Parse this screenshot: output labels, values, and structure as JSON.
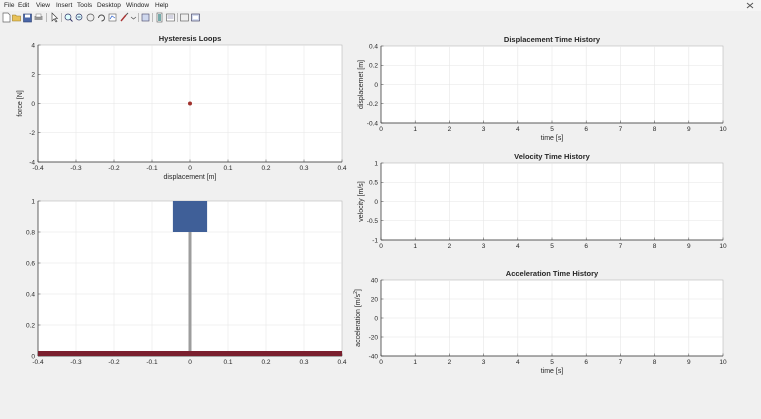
{
  "menu": [
    "File",
    "Edit",
    "View",
    "Insert",
    "Tools",
    "Desktop",
    "Window",
    "Help"
  ],
  "toolbar": {
    "icons": [
      "new-file-icon",
      "open-folder-icon",
      "save-icon",
      "print-icon",
      "pointer-icon",
      "zoom-in-icon",
      "zoom-out-icon",
      "pan-icon",
      "rotate-icon",
      "data-cursor-icon",
      "brush-icon",
      "link-icon",
      "colorbar-icon",
      "legend-icon",
      "hide-plot-tools-icon",
      "show-plot-tools-icon"
    ]
  },
  "hysteresis": {
    "title": "Hysteresis Loops",
    "xlabel": "displacement [m]",
    "ylabel": "force [N]",
    "xticks": [
      "-0.4",
      "-0.3",
      "-0.2",
      "-0.1",
      "0",
      "0.1",
      "0.2",
      "0.3",
      "0.4"
    ],
    "yticks": [
      "-4",
      "-2",
      "0",
      "2",
      "4"
    ]
  },
  "animation": {
    "xticks": [
      "-0.4",
      "-0.3",
      "-0.2",
      "-0.1",
      "0",
      "0.1",
      "0.2",
      "0.3",
      "0.4"
    ],
    "yticks": [
      "0",
      "0.2",
      "0.4",
      "0.6",
      "0.8",
      "1"
    ],
    "mass_color": "#3f5f98",
    "ground_color": "#7a1f2e",
    "rod_color": "#9d9d9d"
  },
  "displacement": {
    "title": "Displacement Time History",
    "ylabel": "displacemet [m]",
    "xlabel": "time [s]",
    "xticks": [
      "0",
      "1",
      "2",
      "3",
      "4",
      "5",
      "6",
      "7",
      "8",
      "9",
      "10"
    ],
    "yticks": [
      "-0.4",
      "-0.2",
      "0",
      "0.2",
      "0.4"
    ]
  },
  "velocity": {
    "title": "Velocity Time History",
    "ylabel": "velocity [m/s]",
    "xticks": [
      "0",
      "1",
      "2",
      "3",
      "4",
      "5",
      "6",
      "7",
      "8",
      "9",
      "10"
    ],
    "yticks": [
      "-1",
      "-0.5",
      "0",
      "0.5",
      "1"
    ]
  },
  "acceleration": {
    "title": "Acceleration Time History",
    "ylabel": "acceleration [m/s",
    "ylabel_sup": "2",
    "ylabel_end": "]",
    "xlabel": "time [s]",
    "xticks": [
      "0",
      "1",
      "2",
      "3",
      "4",
      "5",
      "6",
      "7",
      "8",
      "9",
      "10"
    ],
    "yticks": [
      "-40",
      "-20",
      "0",
      "20",
      "40"
    ]
  },
  "chart_data": [
    {
      "type": "scatter",
      "title": "Hysteresis Loops",
      "xlabel": "displacement [m]",
      "ylabel": "force [N]",
      "xlim": [
        -0.4,
        0.4
      ],
      "ylim": [
        -4,
        4
      ],
      "grid": true,
      "series": [
        {
          "x": [
            0
          ],
          "y": [
            0
          ],
          "color": "#a0322d"
        }
      ]
    },
    {
      "type": "line",
      "title": "Displacement Time History",
      "xlabel": "time [s]",
      "ylabel": "displacemet [m]",
      "xlim": [
        0,
        10
      ],
      "ylim": [
        -0.4,
        0.4
      ],
      "grid": true,
      "series": []
    },
    {
      "type": "line",
      "title": "Velocity Time History",
      "xlabel": "",
      "ylabel": "velocity [m/s]",
      "xlim": [
        0,
        10
      ],
      "ylim": [
        -1,
        1
      ],
      "grid": true,
      "series": []
    },
    {
      "type": "line",
      "title": "Acceleration Time History",
      "xlabel": "time [s]",
      "ylabel": "acceleration [m/s^2]",
      "xlim": [
        0,
        10
      ],
      "ylim": [
        -40,
        40
      ],
      "grid": true,
      "series": []
    }
  ]
}
